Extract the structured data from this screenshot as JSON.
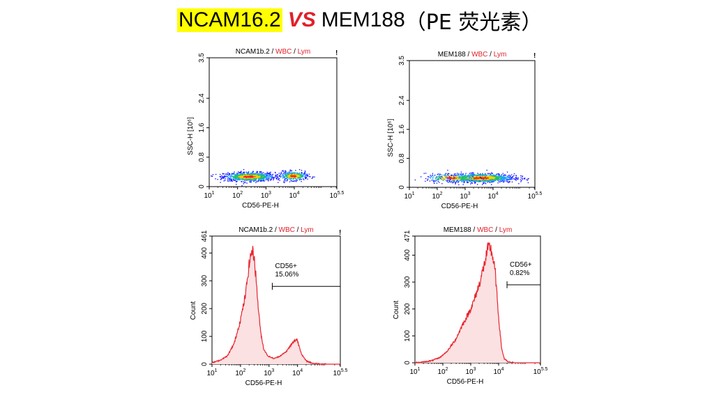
{
  "slide_title": {
    "left": "NCAM16.2",
    "vs": "VS",
    "right": "MEM188",
    "paren": "（PE 荧光素）"
  },
  "colors": {
    "highlight": "#ffff00",
    "vs": "#e0202a",
    "histogram_line": "#e8242e",
    "histogram_fill": "#fbe1e2",
    "title_red": "#e0202a"
  },
  "chart_data": [
    {
      "id": "scatter-ncam",
      "type": "scatter",
      "title_parts": [
        "NCAM1b.2",
        " /",
        " WBC",
        " /",
        " Lym"
      ],
      "xlabel": "CD56-PE-H",
      "ylabel": "SSC-H [10⁶]",
      "x_scale": "log",
      "xlim": [
        10,
        316228
      ],
      "x_ticks": [
        {
          "value": 10,
          "base": "10",
          "exp": "1"
        },
        {
          "value": 100,
          "base": "10",
          "exp": "2"
        },
        {
          "value": 1000,
          "base": "10",
          "exp": "3"
        },
        {
          "value": 10000,
          "base": "10",
          "exp": "4"
        },
        {
          "value": 316228,
          "base": "10",
          "exp": "5.5"
        }
      ],
      "ylim": [
        0,
        3.5
      ],
      "y_ticks": [
        "0",
        "0.8",
        "1.6",
        "2.4",
        "3.5"
      ],
      "y_tick_values": [
        0,
        0.8,
        1.6,
        2.4,
        3.5
      ],
      "density_clusters": [
        {
          "x_center": 250,
          "y_center": 0.28,
          "x_spread_decades": 0.45,
          "y_spread": 0.06,
          "weight": 0.72
        },
        {
          "x_center": 9000,
          "y_center": 0.3,
          "x_spread_decades": 0.25,
          "y_spread": 0.06,
          "weight": 0.28
        }
      ]
    },
    {
      "id": "scatter-mem",
      "type": "scatter",
      "title_parts": [
        "MEM188",
        " /",
        " WBC",
        " /",
        " Lym"
      ],
      "xlabel": "CD56-PE-H",
      "ylabel": "SSC-H [10⁶]",
      "x_scale": "log",
      "xlim": [
        10,
        316228
      ],
      "x_ticks": [
        {
          "value": 10,
          "base": "10",
          "exp": "1"
        },
        {
          "value": 100,
          "base": "10",
          "exp": "2"
        },
        {
          "value": 1000,
          "base": "10",
          "exp": "3"
        },
        {
          "value": 10000,
          "base": "10",
          "exp": "4"
        },
        {
          "value": 316228,
          "base": "10",
          "exp": "5.5"
        }
      ],
      "ylim": [
        0,
        3.5
      ],
      "y_ticks": [
        "0",
        "0.8",
        "1.6",
        "2.4",
        "3.5"
      ],
      "y_tick_values": [
        0,
        0.8,
        1.6,
        2.4,
        3.5
      ],
      "density_clusters": [
        {
          "x_center": 3500,
          "y_center": 0.27,
          "x_spread_decades": 0.6,
          "y_spread": 0.06,
          "weight": 0.85
        },
        {
          "x_center": 300,
          "y_center": 0.27,
          "x_spread_decades": 0.45,
          "y_spread": 0.06,
          "weight": 0.15
        }
      ]
    },
    {
      "id": "hist-ncam",
      "type": "area",
      "title_parts": [
        "NCAM1b.2",
        " /",
        " WBC",
        " /",
        " Lym"
      ],
      "xlabel": "CD56-PE-H",
      "ylabel": "Count",
      "x_scale": "log",
      "xlim": [
        10,
        316228
      ],
      "x_ticks": [
        {
          "value": 10,
          "base": "10",
          "exp": "1"
        },
        {
          "value": 100,
          "base": "10",
          "exp": "2"
        },
        {
          "value": 1000,
          "base": "10",
          "exp": "3"
        },
        {
          "value": 10000,
          "base": "10",
          "exp": "4"
        },
        {
          "value": 316228,
          "base": "10",
          "exp": "5.5"
        }
      ],
      "ylim": [
        0,
        461
      ],
      "y_ticks": [
        "0",
        "100",
        "200",
        "300",
        "400",
        "461"
      ],
      "y_tick_values": [
        0,
        100,
        200,
        300,
        400,
        461
      ],
      "curve": {
        "x": [
          10,
          20,
          35,
          60,
          100,
          150,
          200,
          250,
          300,
          350,
          400,
          500,
          650,
          900,
          1500,
          2500,
          4000,
          6000,
          8000,
          9500,
          11000,
          14000,
          20000,
          35000,
          100000
        ],
        "y": [
          5,
          15,
          30,
          75,
          160,
          250,
          360,
          410,
          390,
          310,
          230,
          120,
          55,
          30,
          20,
          30,
          45,
          70,
          85,
          90,
          70,
          35,
          12,
          3,
          0
        ]
      },
      "gate": {
        "label": "CD56+",
        "percent": "15.06%",
        "from": 1300,
        "to": 316228,
        "level": 280
      }
    },
    {
      "id": "hist-mem",
      "type": "area",
      "title_parts": [
        "MEM188",
        " /",
        " WBC",
        " /",
        " Lym"
      ],
      "xlabel": "CD56-PE-H",
      "ylabel": "Count",
      "x_scale": "log",
      "xlim": [
        10,
        316228
      ],
      "x_ticks": [
        {
          "value": 10,
          "base": "10",
          "exp": "1"
        },
        {
          "value": 100,
          "base": "10",
          "exp": "2"
        },
        {
          "value": 1000,
          "base": "10",
          "exp": "3"
        },
        {
          "value": 10000,
          "base": "10",
          "exp": "4"
        },
        {
          "value": 316228,
          "base": "10",
          "exp": "5.5"
        }
      ],
      "ylim": [
        0,
        471
      ],
      "y_ticks": [
        "0",
        "100",
        "200",
        "300",
        "400",
        "471"
      ],
      "y_tick_values": [
        0,
        100,
        200,
        300,
        400,
        471
      ],
      "curve": {
        "x": [
          10,
          20,
          40,
          80,
          150,
          300,
          500,
          800,
          1200,
          2000,
          3000,
          4000,
          5000,
          6000,
          7500,
          9000,
          11000,
          13000,
          16000,
          22000,
          40000
        ],
        "y": [
          0,
          3,
          8,
          20,
          45,
          90,
          140,
          180,
          220,
          290,
          360,
          420,
          430,
          400,
          340,
          230,
          120,
          50,
          15,
          3,
          0
        ]
      },
      "gate": {
        "label": "CD56+",
        "percent": "0.82%",
        "from": 20000,
        "to": 316228,
        "level": 290
      }
    }
  ]
}
